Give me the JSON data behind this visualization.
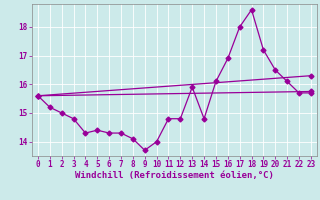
{
  "background_color": "#cceaea",
  "line_color": "#990099",
  "marker": "D",
  "markersize": 2.5,
  "linewidth": 0.9,
  "xlabel": "Windchill (Refroidissement éolien,°C)",
  "xlabel_fontsize": 6.5,
  "tick_fontsize": 5.5,
  "ylim": [
    13.5,
    18.8
  ],
  "xlim": [
    -0.5,
    23.5
  ],
  "yticks": [
    14,
    15,
    16,
    17,
    18
  ],
  "xticks": [
    0,
    1,
    2,
    3,
    4,
    5,
    6,
    7,
    8,
    9,
    10,
    11,
    12,
    13,
    14,
    15,
    16,
    17,
    18,
    19,
    20,
    21,
    22,
    23
  ],
  "series1_x": [
    0,
    1,
    2,
    3,
    4,
    5,
    6,
    7,
    8,
    9,
    10,
    11,
    12,
    13,
    14,
    15,
    16,
    17,
    18,
    19,
    20,
    21,
    22,
    23
  ],
  "series1_y": [
    15.6,
    15.2,
    15.0,
    14.8,
    14.3,
    14.4,
    14.3,
    14.3,
    14.1,
    13.7,
    14.0,
    14.8,
    14.8,
    15.9,
    14.8,
    16.1,
    16.9,
    18.0,
    18.6,
    17.2,
    16.5,
    16.1,
    15.7,
    15.7
  ],
  "series2_x": [
    0,
    23
  ],
  "series2_y": [
    15.6,
    15.75
  ],
  "series3_x": [
    0,
    23
  ],
  "series3_y": [
    15.6,
    16.3
  ]
}
